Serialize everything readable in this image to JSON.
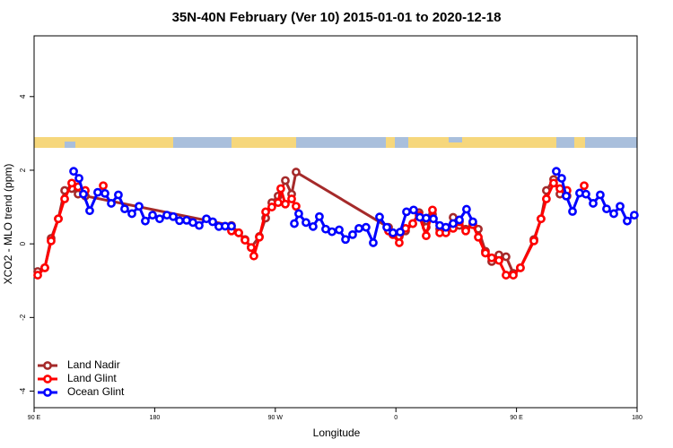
{
  "chart_data": {
    "type": "line",
    "title": "35N-40N February (Ver 10)   2015-01-01 to 2020-12-18",
    "x_label": "Longitude",
    "y_label": "XCO2 - MLO trend (ppm)",
    "xlim": [
      90,
      540
    ],
    "xticks": [
      {
        "value": 90,
        "label": "90 E"
      },
      {
        "value": 180,
        "label": "180"
      },
      {
        "value": 270,
        "label": "90 W"
      },
      {
        "value": 360,
        "label": "0"
      },
      {
        "value": 450,
        "label": "90 E"
      },
      {
        "value": 540,
        "label": "180"
      }
    ],
    "ylim": [
      -4.45,
      5.65
    ],
    "yticks": [
      -4,
      -2,
      0,
      2,
      4
    ],
    "legend": "bottom-left",
    "series": [
      {
        "name": "Land Nadir",
        "color": "#a52a2a",
        "x": [
          92.7,
          98.0,
          102.7,
          108.1,
          112.8,
          118.1,
          122.8,
          128.2,
          237.3,
          242.7,
          247.4,
          252.0,
          258.1,
          262.8,
          267.4,
          272.1,
          277.5,
          282.2,
          285.5,
          354.5,
          357.8,
          362.5,
          367.2,
          372.6,
          377.3,
          382.6,
          387.3,
          392.7,
          397.3,
          402.7,
          407.4,
          412.1,
          417.4,
          421.5,
          426.8,
          431.5,
          436.9,
          442.2,
          447.6,
          452.9,
          463.0,
          468.3,
          472.3,
          477.7,
          482.4,
          487.7
        ],
        "values": [
          -0.75,
          -0.65,
          0.15,
          0.68,
          1.45,
          1.5,
          1.35,
          1.3,
          0.5,
          0.3,
          0.12,
          -0.1,
          0.2,
          0.7,
          1.12,
          1.3,
          1.72,
          1.35,
          1.95,
          0.45,
          0.3,
          0.2,
          0.35,
          0.55,
          0.85,
          0.45,
          0.8,
          0.4,
          0.35,
          0.72,
          0.5,
          0.4,
          0.55,
          0.4,
          -0.2,
          -0.48,
          -0.3,
          -0.35,
          -0.8,
          -0.65,
          0.12,
          0.68,
          1.45,
          1.75,
          1.35,
          1.3
        ]
      },
      {
        "name": "Land Glint",
        "color": "#ff0000",
        "x": [
          92.7,
          98.0,
          102.7,
          108.1,
          112.8,
          118.1,
          122.8,
          128.2,
          null,
          141.6,
          null,
          237.3,
          242.7,
          247.4,
          252.0,
          254.0,
          258.1,
          262.8,
          267.4,
          272.1,
          274.1,
          277.5,
          282.2,
          285.5,
          null,
          354.5,
          357.8,
          362.5,
          367.2,
          372.6,
          377.3,
          382.6,
          387.3,
          392.7,
          397.3,
          402.7,
          407.4,
          412.1,
          417.4,
          421.5,
          426.8,
          431.5,
          436.9,
          442.2,
          447.6,
          452.9,
          463.0,
          468.3,
          472.3,
          477.7,
          482.4,
          487.7,
          null,
          500.5
        ],
        "values": [
          -0.85,
          -0.65,
          0.08,
          0.68,
          1.22,
          1.65,
          1.55,
          1.45,
          null,
          1.58,
          null,
          0.35,
          0.3,
          0.1,
          -0.1,
          -0.33,
          0.18,
          0.87,
          1.0,
          1.12,
          1.5,
          1.08,
          1.22,
          1.02,
          null,
          0.35,
          0.25,
          0.03,
          0.42,
          0.55,
          0.78,
          0.22,
          0.92,
          0.3,
          0.3,
          0.42,
          0.6,
          0.35,
          0.52,
          0.18,
          -0.25,
          -0.38,
          -0.45,
          -0.85,
          -0.85,
          -0.65,
          0.08,
          0.68,
          1.22,
          1.65,
          1.5,
          1.45,
          null,
          1.58
        ]
      },
      {
        "name": "Ocean Glint",
        "color": "#0000ff",
        "x": [
          119.5,
          123.5,
          126.8,
          131.5,
          137.5,
          142.9,
          147.6,
          152.9,
          157.6,
          163.0,
          168.3,
          173.0,
          178.4,
          183.7,
          189.1,
          193.8,
          198.5,
          203.8,
          208.5,
          213.2,
          218.6,
          223.3,
          227.9,
          232.6,
          237.3,
          null,
          284.2,
          287.5,
          292.9,
          298.2,
          302.9,
          307.6,
          312.3,
          317.7,
          322.4,
          327.7,
          332.4,
          337.7,
          343.1,
          347.8,
          353.2,
          357.8,
          363.2,
          367.9,
          373.2,
          377.9,
          382.6,
          388.0,
          392.7,
          397.3,
          402.7,
          407.4,
          412.7,
          417.4,
          null,
          479.7,
          483.7,
          487.1,
          491.8,
          497.1,
          501.8,
          507.2,
          512.5,
          517.2,
          522.6,
          527.3,
          532.6,
          537.9
        ],
        "values": [
          1.97,
          1.78,
          1.35,
          0.9,
          1.4,
          1.37,
          1.1,
          1.33,
          0.95,
          0.82,
          1.02,
          0.62,
          0.78,
          0.68,
          0.78,
          0.74,
          0.63,
          0.64,
          0.58,
          0.5,
          0.68,
          0.6,
          0.47,
          0.48,
          0.48,
          null,
          0.55,
          0.82,
          0.58,
          0.47,
          0.74,
          0.4,
          0.33,
          0.38,
          0.12,
          0.25,
          0.42,
          0.45,
          0.03,
          0.73,
          0.45,
          0.3,
          0.32,
          0.87,
          0.92,
          0.72,
          0.7,
          0.68,
          0.5,
          0.45,
          0.55,
          0.65,
          0.94,
          0.6,
          null,
          1.97,
          1.78,
          1.3,
          0.88,
          1.38,
          1.35,
          1.1,
          1.33,
          0.95,
          0.82,
          1.02,
          0.62,
          0.78
        ]
      }
    ]
  }
}
